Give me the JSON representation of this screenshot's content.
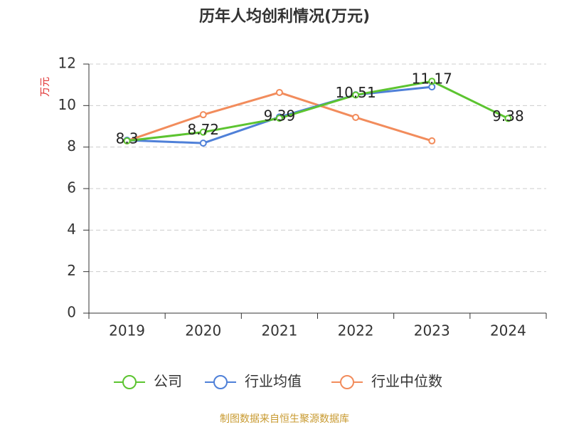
{
  "chart_data": {
    "type": "line",
    "title": "历年人均创利情况(万元)",
    "y_label": "万元",
    "categories": [
      "2019",
      "2020",
      "2021",
      "2022",
      "2023",
      "2024"
    ],
    "series": [
      {
        "name": "公司",
        "color": "#5cc430",
        "values": [
          8.3,
          8.72,
          9.39,
          10.51,
          11.17,
          9.38
        ],
        "show_labels": true
      },
      {
        "name": "行业均值",
        "color": "#4f80d8",
        "values": [
          8.33,
          8.19,
          9.45,
          10.52,
          10.9,
          null
        ],
        "show_labels": false
      },
      {
        "name": "行业中位数",
        "color": "#f28c5c",
        "values": [
          8.3,
          9.56,
          10.63,
          9.43,
          8.3,
          null
        ],
        "show_labels": false
      }
    ],
    "ylim": [
      0,
      12
    ],
    "yticks": [
      0,
      2,
      4,
      6,
      8,
      10,
      12
    ],
    "grid": true,
    "source": "制图数据来自恒生聚源数据库"
  }
}
